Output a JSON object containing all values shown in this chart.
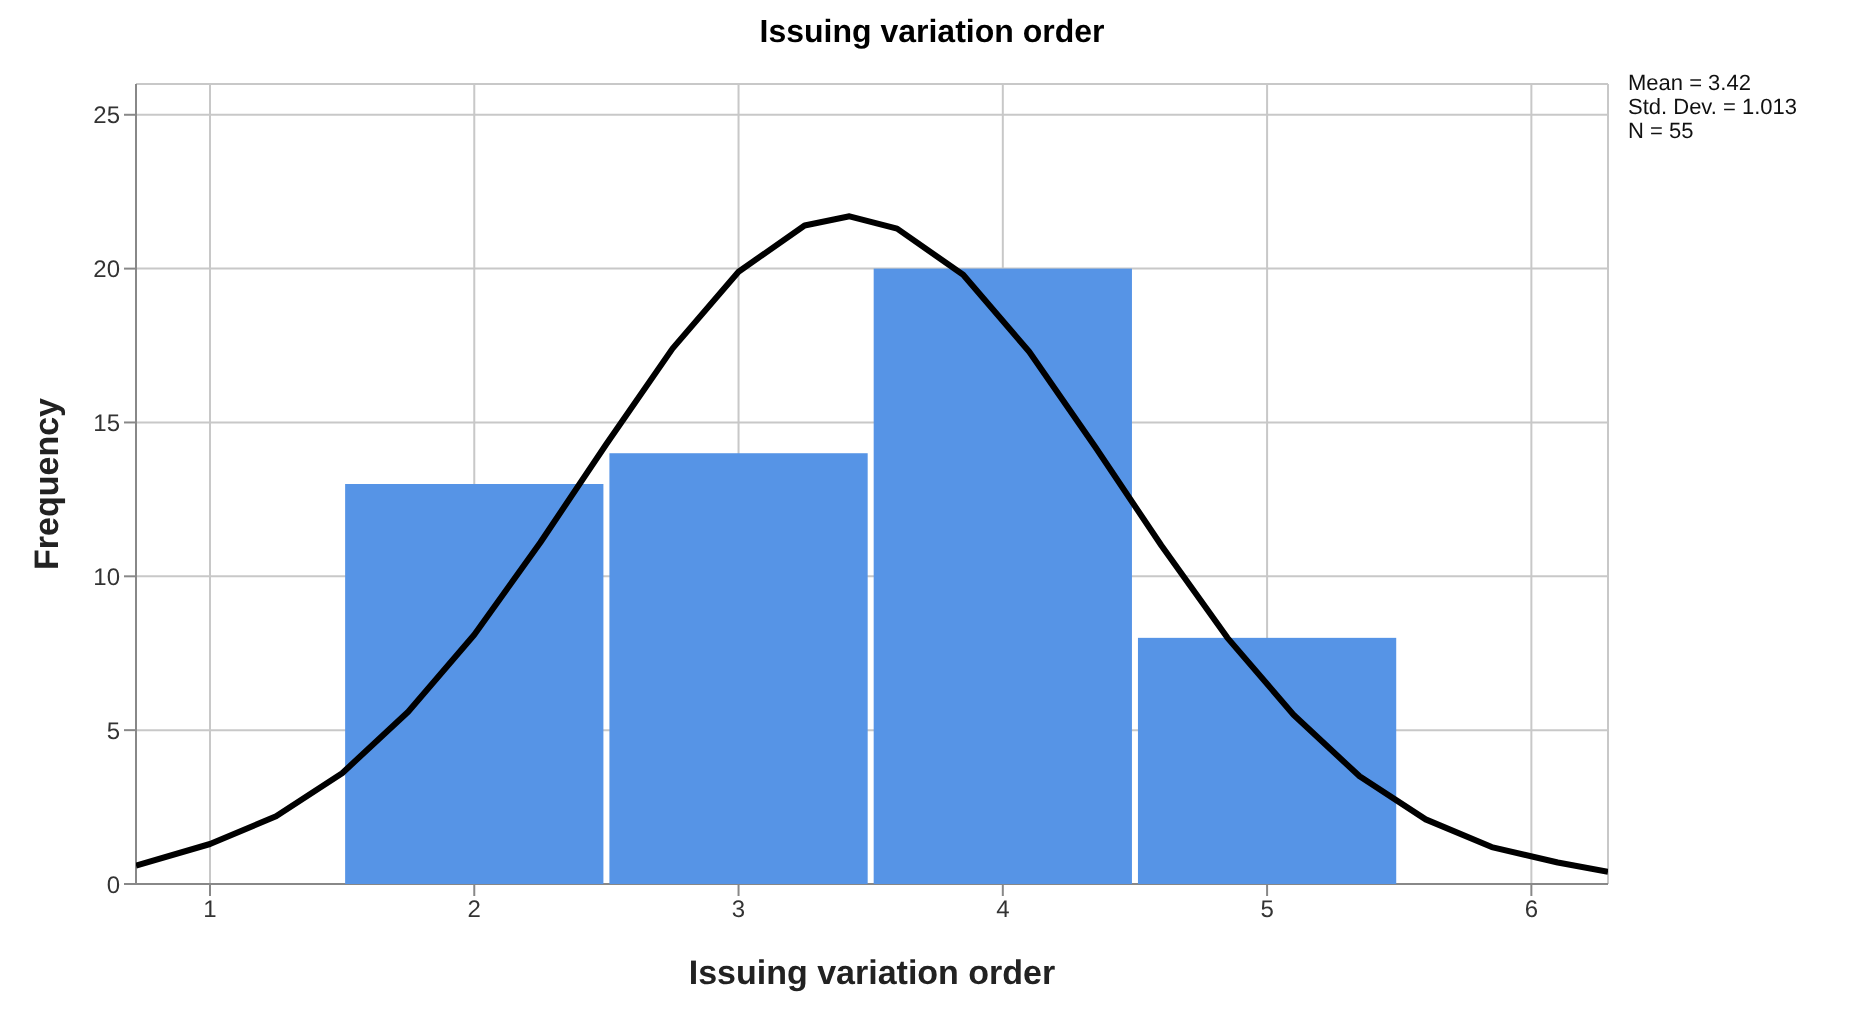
{
  "chart_data": {
    "type": "histogram",
    "title": "Issuing variation order",
    "xlabel": "Issuing variation order",
    "ylabel": "Frequency",
    "bins": [
      1.5,
      2.5,
      3.5,
      4.5,
      5.5
    ],
    "series": [
      {
        "color": "#5694e6",
        "values": [
          13,
          14,
          20,
          8
        ]
      },
      {
        "type": "line",
        "color": "#000000",
        "x": [
          0.72,
          1.0,
          1.25,
          1.5,
          1.75,
          2.0,
          2.25,
          2.5,
          2.75,
          3.0,
          3.25,
          3.42,
          3.6,
          3.85,
          4.1,
          4.35,
          4.6,
          4.85,
          5.1,
          5.35,
          5.6,
          5.85,
          6.1,
          6.29
        ],
        "values": [
          0.6,
          1.3,
          2.2,
          3.6,
          5.6,
          8.1,
          11.1,
          14.3,
          17.4,
          19.9,
          21.4,
          21.7,
          21.3,
          19.8,
          17.3,
          14.2,
          11.0,
          8.0,
          5.5,
          3.5,
          2.1,
          1.2,
          0.7,
          0.4
        ]
      }
    ],
    "xlim": [
      0.72,
      6.29
    ],
    "xticks": [
      1,
      2,
      3,
      4,
      5,
      6
    ],
    "ylim": [
      0,
      26
    ],
    "yticks": [
      0,
      5,
      10,
      15,
      20,
      25
    ],
    "grid": true,
    "legend": false,
    "marker": "none",
    "line_style": "solid",
    "annotations": [
      "Mean = 3.42",
      "Std. Dev. = 1.013",
      "N = 55"
    ]
  }
}
